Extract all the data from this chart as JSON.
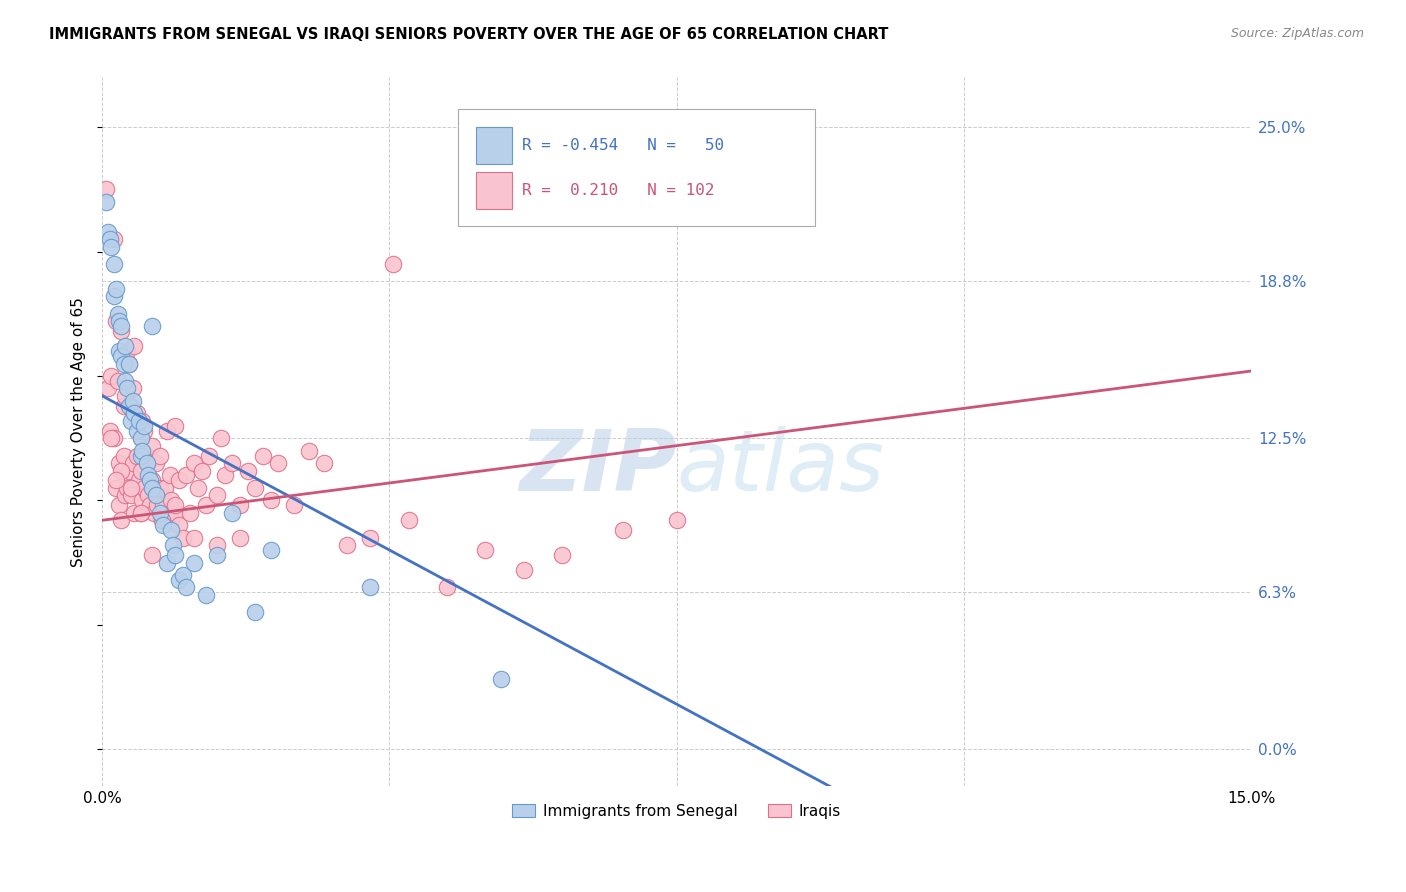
{
  "title": "IMMIGRANTS FROM SENEGAL VS IRAQI SENIORS POVERTY OVER THE AGE OF 65 CORRELATION CHART",
  "source": "Source: ZipAtlas.com",
  "ylabel_label": "Seniors Poverty Over the Age of 65",
  "xlim": [
    0.0,
    15.0
  ],
  "ylim": [
    -1.5,
    27.0
  ],
  "ytick_vals": [
    0.0,
    6.3,
    12.5,
    18.8,
    25.0
  ],
  "xtick_vals": [
    0.0,
    3.75,
    7.5,
    11.25,
    15.0
  ],
  "series1_label": "Immigrants from Senegal",
  "series2_label": "Iraqis",
  "color1_face": "#b8d0ea",
  "color1_edge": "#6699cc",
  "color2_face": "#f9c4d0",
  "color2_edge": "#e0708a",
  "line1_color": "#4472c4",
  "line2_color": "#cc5577",
  "watermark": "ZIPatlas",
  "blue_line_x0": 0.0,
  "blue_line_y0": 14.2,
  "blue_line_x1": 9.5,
  "blue_line_y1": -1.5,
  "pink_line_x0": 0.0,
  "pink_line_y0": 9.2,
  "pink_line_x1": 15.0,
  "pink_line_y1": 15.2,
  "blue_x": [
    0.05,
    0.08,
    0.1,
    0.12,
    0.15,
    0.15,
    0.18,
    0.2,
    0.22,
    0.22,
    0.25,
    0.25,
    0.28,
    0.3,
    0.3,
    0.32,
    0.35,
    0.35,
    0.38,
    0.4,
    0.42,
    0.45,
    0.48,
    0.5,
    0.5,
    0.52,
    0.55,
    0.58,
    0.6,
    0.62,
    0.65,
    0.65,
    0.7,
    0.75,
    0.8,
    0.85,
    0.9,
    0.92,
    0.95,
    1.0,
    1.05,
    1.1,
    1.2,
    1.35,
    1.5,
    1.7,
    2.0,
    2.2,
    3.5,
    5.2
  ],
  "blue_y": [
    22.0,
    20.8,
    20.5,
    20.2,
    19.5,
    18.2,
    18.5,
    17.5,
    16.0,
    17.2,
    15.8,
    17.0,
    15.5,
    16.2,
    14.8,
    14.5,
    13.8,
    15.5,
    13.2,
    14.0,
    13.5,
    12.8,
    13.2,
    12.5,
    11.8,
    12.0,
    13.0,
    11.5,
    11.0,
    10.8,
    17.0,
    10.5,
    10.2,
    9.5,
    9.0,
    7.5,
    8.8,
    8.2,
    7.8,
    6.8,
    7.0,
    6.5,
    7.5,
    6.2,
    7.8,
    9.5,
    5.5,
    8.0,
    6.5,
    2.8
  ],
  "pink_x": [
    0.05,
    0.08,
    0.1,
    0.12,
    0.15,
    0.15,
    0.18,
    0.18,
    0.2,
    0.22,
    0.22,
    0.25,
    0.25,
    0.28,
    0.28,
    0.3,
    0.3,
    0.32,
    0.32,
    0.35,
    0.35,
    0.38,
    0.38,
    0.4,
    0.4,
    0.42,
    0.42,
    0.45,
    0.45,
    0.48,
    0.5,
    0.5,
    0.5,
    0.52,
    0.52,
    0.55,
    0.55,
    0.58,
    0.6,
    0.6,
    0.62,
    0.65,
    0.65,
    0.68,
    0.7,
    0.7,
    0.72,
    0.75,
    0.75,
    0.78,
    0.8,
    0.82,
    0.85,
    0.88,
    0.9,
    0.9,
    0.95,
    0.95,
    1.0,
    1.0,
    1.05,
    1.1,
    1.15,
    1.2,
    1.25,
    1.3,
    1.35,
    1.4,
    1.5,
    1.55,
    1.6,
    1.7,
    1.8,
    1.9,
    2.0,
    2.1,
    2.2,
    2.3,
    2.5,
    2.7,
    2.9,
    3.2,
    3.5,
    4.0,
    4.5,
    5.0,
    5.5,
    6.0,
    6.8,
    7.5,
    3.8,
    1.8,
    1.5,
    1.2,
    0.95,
    0.78,
    0.65,
    0.5,
    0.38,
    0.25,
    0.18,
    0.12
  ],
  "pink_y": [
    22.5,
    14.5,
    12.8,
    15.0,
    20.5,
    12.5,
    10.5,
    17.2,
    14.8,
    9.8,
    11.5,
    9.2,
    16.8,
    13.8,
    11.8,
    14.2,
    10.2,
    16.0,
    10.5,
    15.5,
    11.2,
    13.8,
    10.2,
    14.5,
    11.5,
    16.2,
    9.5,
    11.8,
    13.5,
    10.8,
    12.5,
    11.2,
    9.5,
    13.2,
    10.0,
    12.8,
    10.5,
    11.8,
    10.2,
    11.5,
    9.8,
    12.2,
    10.8,
    9.5,
    10.2,
    11.5,
    9.8,
    10.5,
    11.8,
    9.2,
    9.8,
    10.5,
    12.8,
    11.0,
    10.0,
    9.2,
    13.0,
    9.5,
    9.0,
    10.8,
    8.5,
    11.0,
    9.5,
    11.5,
    10.5,
    11.2,
    9.8,
    11.8,
    10.2,
    12.5,
    11.0,
    11.5,
    9.8,
    11.2,
    10.5,
    11.8,
    10.0,
    11.5,
    9.8,
    12.0,
    11.5,
    8.2,
    8.5,
    9.2,
    6.5,
    8.0,
    7.2,
    7.8,
    8.8,
    9.2,
    19.5,
    8.5,
    8.2,
    8.5,
    9.8,
    9.2,
    7.8,
    9.5,
    10.5,
    11.2,
    10.8,
    12.5
  ]
}
